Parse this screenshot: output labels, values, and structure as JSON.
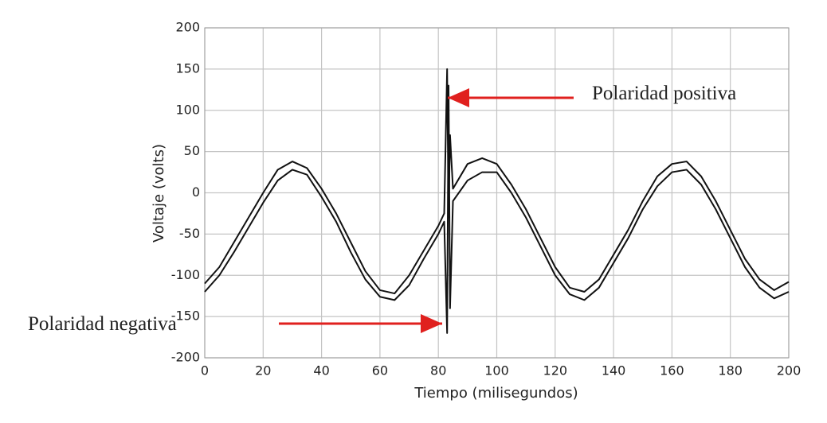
{
  "chart_data": {
    "type": "line",
    "xlabel": "Tiempo (milisegundos)",
    "ylabel": "Voltaje (volts)",
    "x": [
      0,
      5,
      10,
      15,
      20,
      25,
      30,
      35,
      40,
      45,
      50,
      55,
      60,
      65,
      70,
      75,
      80,
      82,
      83,
      83.5,
      84,
      85,
      90,
      95,
      100,
      105,
      110,
      115,
      120,
      125,
      130,
      135,
      140,
      145,
      150,
      155,
      160,
      165,
      170,
      175,
      180,
      185,
      190,
      195,
      200
    ],
    "series": [
      {
        "color": "#111111",
        "values": [
          -110,
          -90,
          -60,
          -30,
          0,
          28,
          38,
          30,
          5,
          -25,
          -60,
          -95,
          -118,
          -122,
          -100,
          -70,
          -40,
          -25,
          150,
          -30,
          70,
          5,
          35,
          42,
          35,
          10,
          -20,
          -55,
          -90,
          -115,
          -120,
          -105,
          -75,
          -45,
          -10,
          20,
          35,
          38,
          20,
          -10,
          -45,
          -80,
          -105,
          -118,
          -108
        ]
      },
      {
        "color": "#111111",
        "values": [
          -120,
          -100,
          -72,
          -42,
          -12,
          15,
          28,
          22,
          -5,
          -35,
          -72,
          -105,
          -126,
          -130,
          -112,
          -80,
          -50,
          -35,
          -170,
          130,
          -140,
          -10,
          15,
          25,
          25,
          0,
          -30,
          -65,
          -100,
          -123,
          -130,
          -115,
          -85,
          -55,
          -20,
          8,
          25,
          28,
          10,
          -20,
          -55,
          -90,
          -115,
          -128,
          -120
        ]
      }
    ],
    "xlim": [
      0,
      200
    ],
    "xticks": [
      0,
      20,
      40,
      60,
      80,
      100,
      120,
      140,
      160,
      180,
      200
    ],
    "ylim": [
      -200,
      200
    ],
    "yticks": [
      -200,
      -150,
      -100,
      -50,
      0,
      50,
      100,
      150,
      200
    ],
    "grid": true,
    "annotations": [
      {
        "text": "Polaridad positiva"
      },
      {
        "text": "Polaridad negativa"
      }
    ]
  }
}
